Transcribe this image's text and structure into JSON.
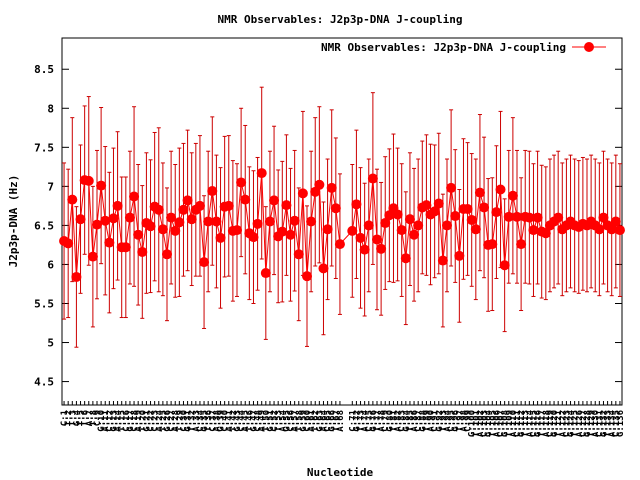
{
  "chart_data": {
    "type": "line",
    "title": "NMR Observables: J2p3p-DNA J-coupling",
    "xlabel": "Nucleotide",
    "ylabel": "J2p3p-DNA (Hz)",
    "ylim": [
      4.2,
      8.9
    ],
    "xlim": [
      0.5,
      136.5
    ],
    "yticks": [
      4.5,
      5,
      5.5,
      6,
      6.5,
      7,
      7.5,
      8,
      8.5
    ],
    "legend_position": "top-right",
    "color": "#ff0000",
    "errorbar_color": "#cc0000",
    "series": [
      {
        "name": "NMR Observables: J2p3p-DNA J-coupling",
        "x": [
          1,
          2,
          3,
          4,
          5,
          6,
          7,
          8,
          9,
          10,
          11,
          12,
          13,
          14,
          15,
          16,
          17,
          18,
          19,
          20,
          21,
          22,
          23,
          24,
          25,
          26,
          27,
          28,
          29,
          30,
          31,
          32,
          33,
          34,
          35,
          36,
          37,
          38,
          39,
          40,
          41,
          42,
          43,
          44,
          45,
          46,
          47,
          48,
          49,
          50,
          51,
          52,
          53,
          54,
          55,
          56,
          57,
          58,
          59,
          60,
          61,
          62,
          63,
          64,
          65,
          66,
          67,
          68,
          71,
          72,
          73,
          74,
          75,
          76,
          77,
          78,
          79,
          80,
          81,
          82,
          83,
          84,
          85,
          86,
          87,
          88,
          89,
          90,
          91,
          92,
          93,
          94,
          95,
          96,
          97,
          98,
          99,
          100,
          101,
          102,
          103,
          104,
          105,
          106,
          107,
          108,
          109,
          110,
          111,
          112,
          113,
          114,
          115,
          116,
          117,
          118,
          119,
          120,
          121,
          122,
          123,
          124,
          125,
          126,
          127,
          128,
          129,
          130,
          131,
          132,
          133,
          134,
          135,
          136
        ],
        "y": [
          6.3,
          6.27,
          6.83,
          5.84,
          6.58,
          7.08,
          7.07,
          6.1,
          6.51,
          7.01,
          6.56,
          6.28,
          6.59,
          6.75,
          6.22,
          6.22,
          6.6,
          6.87,
          6.38,
          6.16,
          6.53,
          6.49,
          6.74,
          6.7,
          6.45,
          6.13,
          6.6,
          6.43,
          6.54,
          6.7,
          6.82,
          6.58,
          6.7,
          6.75,
          6.03,
          6.55,
          6.94,
          6.55,
          6.34,
          6.74,
          6.75,
          6.43,
          6.44,
          7.05,
          6.83,
          6.4,
          6.35,
          6.52,
          7.17,
          5.89,
          6.55,
          6.82,
          6.36,
          6.42,
          6.76,
          6.38,
          6.56,
          6.13,
          6.91,
          5.85,
          6.55,
          6.93,
          7.02,
          5.95,
          6.45,
          6.98,
          6.72,
          6.26,
          6.43,
          6.77,
          6.34,
          6.19,
          6.5,
          7.1,
          6.32,
          6.2,
          6.53,
          6.63,
          6.72,
          6.64,
          6.44,
          6.08,
          6.58,
          6.38,
          6.5,
          6.73,
          6.76,
          6.64,
          6.68,
          6.78,
          6.05,
          6.5,
          6.98,
          6.62,
          6.11,
          6.71,
          6.71,
          6.57,
          6.45,
          6.92,
          6.73,
          6.25,
          6.26,
          6.67,
          6.96,
          5.99,
          6.61,
          6.88,
          6.61,
          6.26,
          6.61,
          6.6,
          6.44,
          6.6,
          6.42,
          6.4,
          6.5,
          6.55,
          6.6,
          6.45,
          6.5,
          6.55,
          6.5,
          6.48,
          6.52,
          6.5,
          6.55,
          6.5,
          6.45,
          6.6,
          6.5,
          6.45,
          6.55,
          6.44
        ],
        "err": [
          1.0,
          0.95,
          1.05,
          0.9,
          0.95,
          0.95,
          1.08,
          0.9,
          0.95,
          1.0,
          0.95,
          0.9,
          0.9,
          0.95,
          0.9,
          0.9,
          0.85,
          1.15,
          0.9,
          0.85,
          0.9,
          0.85,
          0.95,
          1.05,
          0.85,
          0.85,
          0.85,
          0.85,
          0.95,
          0.85,
          0.9,
          0.85,
          0.85,
          0.9,
          0.85,
          0.9,
          0.95,
          0.85,
          0.9,
          0.9,
          0.9,
          0.9,
          0.85,
          0.95,
          0.95,
          0.85,
          0.85,
          0.85,
          1.1,
          0.85,
          0.9,
          0.95,
          0.85,
          0.9,
          0.9,
          0.85,
          0.9,
          0.85,
          1.05,
          0.9,
          0.9,
          0.95,
          1.0,
          0.85,
          0.9,
          1.0,
          0.9,
          0.9,
          0.85,
          0.95,
          0.9,
          0.85,
          0.85,
          1.1,
          0.9,
          0.85,
          0.85,
          0.85,
          0.95,
          0.85,
          0.85,
          0.85,
          0.85,
          0.85,
          0.85,
          0.85,
          0.9,
          0.9,
          0.85,
          0.9,
          0.85,
          0.85,
          1.0,
          0.85,
          0.85,
          0.9,
          0.85,
          0.85,
          0.9,
          1.0,
          0.9,
          0.85,
          0.85,
          0.85,
          1.0,
          0.85,
          0.85,
          1.0,
          0.85,
          0.85,
          0.85,
          0.85,
          0.85,
          0.85,
          0.85,
          0.85,
          0.85,
          0.85,
          0.85,
          0.85,
          0.85,
          0.85,
          0.85,
          0.85,
          0.85,
          0.85,
          0.85,
          0.85,
          0.85,
          0.85,
          0.85,
          0.85,
          0.85,
          0.85
        ],
        "xtick_labels": [
          "C:1",
          "T:2",
          "T:3",
          "G:4",
          "T:5",
          "T:6",
          "A:7",
          "T:8",
          "C:9",
          "G:10",
          "A:11",
          "C:12",
          "G:13",
          "A:14",
          "T:15",
          "C:16",
          "G:17",
          "C:18",
          "A:19",
          "T:20",
          "G:21",
          "C:22",
          "C:23",
          "A:24",
          "T:25",
          "G:26",
          "C:27",
          "A:28",
          "T:29",
          "C:30",
          "G:31",
          "T:32",
          "A:33",
          "C:34",
          "G:35",
          "T:36",
          "C:37",
          "A:38",
          "G:39",
          "C:40",
          "A:41",
          "T:42",
          "G:43",
          "C:44",
          "A:45",
          "T:46",
          "G:47",
          "C:48",
          "A:49",
          "T:50",
          "G:51",
          "C:52",
          "T:53",
          "A:54",
          "G:55",
          "C:56",
          "A:57",
          "T:58",
          "G:59",
          "C:60",
          "A:61",
          "T:62",
          "G:63",
          "A:64",
          "C:65",
          "G:66",
          "T:67",
          "A:68",
          "C:71",
          "G:72",
          "T:73",
          "A:74",
          "C:75",
          "G:76",
          "T:77",
          "A:78",
          "C:79",
          "G:80",
          "T:81",
          "A:82",
          "C:83",
          "G:84",
          "T:85",
          "A:86",
          "C:87",
          "G:88",
          "T:89",
          "A:90",
          "C:91",
          "G:92",
          "T:93",
          "A:94",
          "C:95",
          "G:96",
          "T:97",
          "A:98",
          "C:99",
          "G:100",
          "T:101",
          "A:102",
          "C:103",
          "G:104",
          "T:105",
          "A:106",
          "C:107",
          "G:108",
          "T:109",
          "A:110",
          "C:111",
          "G:112",
          "T:113",
          "A:114",
          "C:115",
          "G:116",
          "T:117",
          "A:118",
          "C:119",
          "G:120",
          "T:121",
          "A:122",
          "C:123",
          "G:124",
          "T:125",
          "A:126",
          "C:127",
          "G:128",
          "T:129",
          "A:130",
          "C:131",
          "G:132",
          "T:133",
          "A:134",
          "C:135",
          "G:136"
        ]
      }
    ]
  }
}
